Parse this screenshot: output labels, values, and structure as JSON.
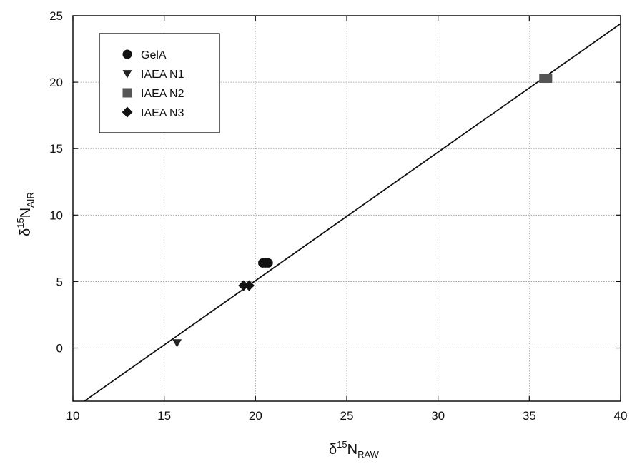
{
  "chart_data": {
    "type": "scatter",
    "title": "",
    "xlabel": {
      "symbol": "δ",
      "sup": "15",
      "base": "N",
      "sub": "RAW"
    },
    "ylabel": {
      "symbol": "δ",
      "sup": "15",
      "base": "N",
      "sub": "AIR"
    },
    "xlim": [
      10,
      40
    ],
    "ylim": [
      -4,
      25
    ],
    "xticks": [
      "10",
      "15",
      "20",
      "25",
      "30",
      "35",
      "40"
    ],
    "yticks": [
      "0",
      "5",
      "10",
      "15",
      "20",
      "25"
    ],
    "grid": true,
    "legend_position": "top-left",
    "series": [
      {
        "name": "GelA",
        "marker": "circle",
        "color": "#111111",
        "points": [
          [
            20.4,
            6.4
          ],
          [
            20.55,
            6.4
          ],
          [
            20.7,
            6.4
          ]
        ]
      },
      {
        "name": "IAEA N1",
        "marker": "triangle-down",
        "color": "#222222",
        "points": [
          [
            15.7,
            0.4
          ]
        ]
      },
      {
        "name": "IAEA N2",
        "marker": "square",
        "color": "#555555",
        "points": [
          [
            35.8,
            20.3
          ],
          [
            36.0,
            20.3
          ]
        ]
      },
      {
        "name": "IAEA N3",
        "marker": "diamond",
        "color": "#111111",
        "points": [
          [
            19.35,
            4.7
          ],
          [
            19.65,
            4.7
          ]
        ]
      }
    ],
    "fit_line": {
      "x": [
        10,
        40
      ],
      "y": [
        -4.6,
        24.4
      ]
    }
  }
}
